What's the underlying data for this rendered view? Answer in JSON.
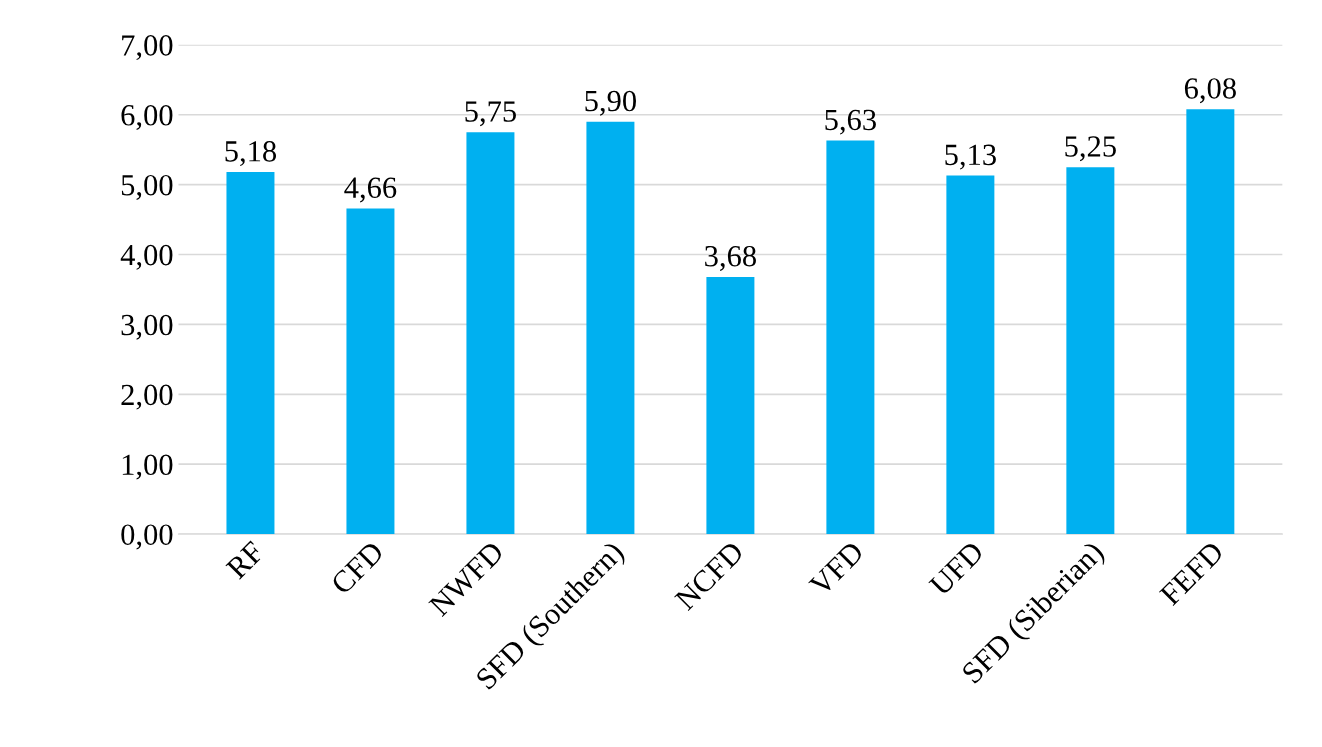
{
  "chart_data": {
    "type": "bar",
    "categories": [
      "RF",
      "CFD",
      "NWFD",
      "SFD (Southern)",
      "NCFD",
      "VFD",
      "UFD",
      "SFD (Siberian)",
      "FEFD"
    ],
    "values": [
      5.18,
      4.66,
      5.75,
      5.9,
      3.68,
      5.63,
      5.13,
      5.25,
      6.08
    ],
    "value_labels": [
      "5,18",
      "4,66",
      "5,75",
      "5,90",
      "3,68",
      "5,63",
      "5,13",
      "5,25",
      "6,08"
    ],
    "color": "#00b0f0",
    "ylim": [
      0,
      7
    ],
    "yticks": [
      {
        "value": 0,
        "label": "0,00"
      },
      {
        "value": 1,
        "label": "1,00"
      },
      {
        "value": 2,
        "label": "2,00"
      },
      {
        "value": 3,
        "label": "3,00"
      },
      {
        "value": 4,
        "label": "4,00"
      },
      {
        "value": 5,
        "label": "5,00"
      },
      {
        "value": 6,
        "label": "6,00"
      },
      {
        "value": 7,
        "label": "7,00"
      }
    ],
    "grid": "y"
  }
}
